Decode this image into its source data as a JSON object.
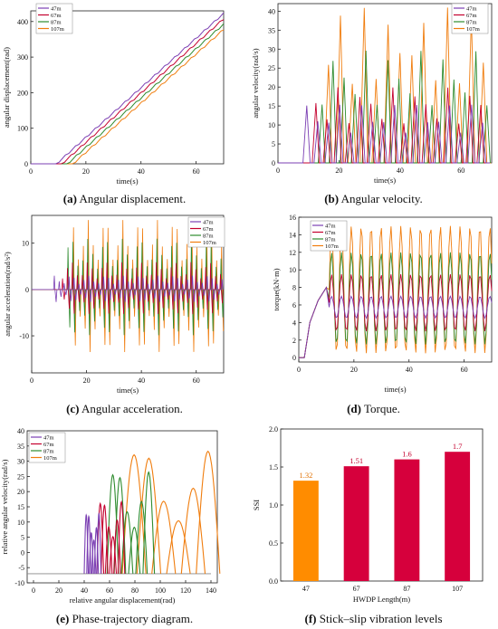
{
  "colors": {
    "47m": "#7b3fb3",
    "67m": "#c4002e",
    "87m": "#2e8b2e",
    "107m": "#f07d0e",
    "ssi_orange": "#ff8c00",
    "ssi_red": "#d6003c"
  },
  "legend": [
    "47m",
    "67m",
    "87m",
    "107m"
  ],
  "panels": {
    "a": {
      "letter": "(a)",
      "caption": "Angular displacement.",
      "xlabel": "time(s)",
      "ylabel": "angular displacement(rad)"
    },
    "b": {
      "letter": "(b)",
      "caption": "Angular velocity.",
      "xlabel": "time(s)",
      "ylabel": "angular velocity(rad/s)"
    },
    "c": {
      "letter": "(c)",
      "caption": "Angular acceleration.",
      "xlabel": "time(s)",
      "ylabel": "angular acceleration(rad/s²)"
    },
    "d": {
      "letter": "(d)",
      "caption": "Torque.",
      "xlabel": "time(s)",
      "ylabel": "torque(kN·m)"
    },
    "e": {
      "letter": "(e)",
      "caption": "Phase-trajectory diagram.",
      "xlabel": "relative angular displacement(rad)",
      "ylabel": "relative angular velocity(rad/s)"
    },
    "f": {
      "letter": "(f)",
      "caption": "Stick–slip vibration levels",
      "xlabel": "HWDP Length(m)",
      "ylabel": "SSI"
    }
  },
  "chart_data": [
    {
      "id": "a",
      "type": "line",
      "xlim": [
        0,
        70
      ],
      "ylim": [
        0,
        430
      ],
      "xticks": [
        "0",
        "20",
        "40",
        "60"
      ],
      "yticks": [
        "0",
        "100",
        "200",
        "300",
        "400"
      ],
      "series": [
        {
          "name": "47m",
          "stick_start": 9,
          "end_value": 425
        },
        {
          "name": "67m",
          "stick_start": 11,
          "end_value": 410
        },
        {
          "name": "87m",
          "stick_start": 13,
          "end_value": 395
        },
        {
          "name": "107m",
          "stick_start": 15,
          "end_value": 380
        }
      ]
    },
    {
      "id": "b",
      "type": "line",
      "xlim": [
        0,
        70
      ],
      "ylim": [
        0,
        42
      ],
      "xticks": [
        "0",
        "20",
        "40",
        "60"
      ],
      "yticks": [
        "0",
        "5",
        "10",
        "15",
        "20",
        "25",
        "30",
        "35",
        "40"
      ],
      "series": [
        {
          "name": "47m",
          "peak": 16
        },
        {
          "name": "67m",
          "peak": 20
        },
        {
          "name": "87m",
          "peak": 30
        },
        {
          "name": "107m",
          "peak": 41
        }
      ]
    },
    {
      "id": "c",
      "type": "line",
      "xlim": [
        0,
        70
      ],
      "ylim": [
        -18,
        16
      ],
      "xticks": [
        "0",
        "20",
        "40",
        "60"
      ],
      "yticks": [
        "-10",
        "0",
        "10"
      ],
      "series": [
        {
          "name": "47m",
          "amp": 3
        },
        {
          "name": "67m",
          "amp": 6
        },
        {
          "name": "87m",
          "amp": 11
        },
        {
          "name": "107m",
          "amp": 15
        }
      ]
    },
    {
      "id": "d",
      "type": "line",
      "xlim": [
        0,
        70
      ],
      "ylim": [
        -0.5,
        16
      ],
      "xticks": [
        "0",
        "20",
        "40",
        "60"
      ],
      "yticks": [
        "0",
        "2",
        "4",
        "6",
        "8",
        "10",
        "12",
        "14",
        "16"
      ],
      "series": [
        {
          "name": "47m",
          "low": 4.5,
          "high": 7
        },
        {
          "name": "67m",
          "low": 3,
          "high": 9.5
        },
        {
          "name": "87m",
          "low": 1.5,
          "high": 12
        },
        {
          "name": "107m",
          "low": 0.5,
          "high": 15
        }
      ]
    },
    {
      "id": "e",
      "type": "line",
      "xlim": [
        -5,
        145
      ],
      "ylim": [
        -10,
        40
      ],
      "xticks": [
        "0",
        "20",
        "40",
        "60",
        "80",
        "100",
        "120",
        "140"
      ],
      "yticks": [
        "-10",
        "-5",
        "0",
        "5",
        "10",
        "15",
        "20",
        "25",
        "30",
        "35",
        "40"
      ],
      "series": [
        {
          "name": "47m",
          "xrange": [
            40,
            52
          ],
          "peak": 13
        },
        {
          "name": "67m",
          "xrange": [
            50,
            70
          ],
          "peak": 17
        },
        {
          "name": "87m",
          "xrange": [
            58,
            92
          ],
          "peak": 27
        },
        {
          "name": "107m",
          "xrange": [
            70,
            140
          ],
          "peak": 34
        }
      ]
    },
    {
      "id": "f",
      "type": "bar",
      "categories": [
        "47",
        "67",
        "87",
        "107"
      ],
      "values": [
        1.32,
        1.51,
        1.6,
        1.7
      ],
      "value_labels": [
        "1.32",
        "1.51",
        "1.6",
        "1.7"
      ],
      "ylim": [
        0,
        2.0
      ],
      "yticks": [
        "0.0",
        "0.5",
        "1.0",
        "1.5",
        "2.0"
      ]
    }
  ]
}
